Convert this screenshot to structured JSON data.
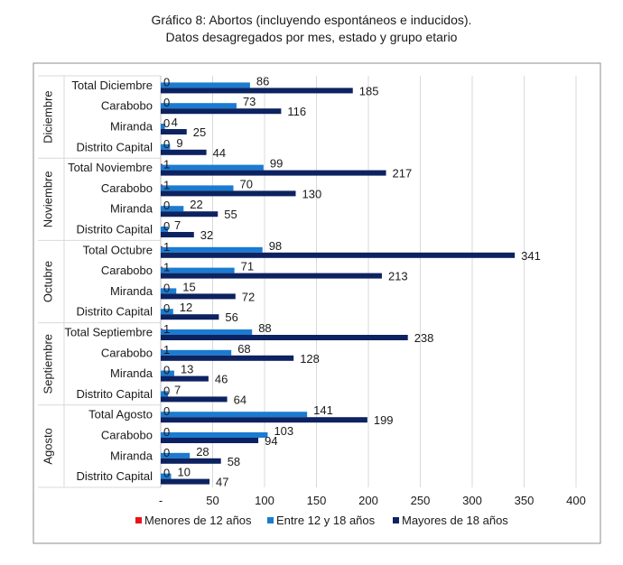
{
  "page": {
    "title_line1": "Gráfico 8: Abortos (incluyendo espontáneos e inducidos).",
    "title_line2": "Datos desagregados por mes, estado y grupo etario"
  },
  "chart_data": {
    "type": "bar",
    "orientation": "horizontal",
    "title": "Gráfico 8: Abortos (incluyendo espontáneos e inducidos). Datos desagregados por mes, estado y grupo etario",
    "xlim": [
      0,
      400
    ],
    "x_ticks": [
      "-",
      "50",
      "100",
      "150",
      "200",
      "250",
      "300",
      "350",
      "400"
    ],
    "legend_position": "bottom",
    "series": [
      {
        "name": "Menores de 12 años",
        "color": "#e8141b"
      },
      {
        "name": "Entre 12 y 18 años",
        "color": "#1b7bd0"
      },
      {
        "name": "Mayores de 18 años",
        "color": "#0d2260"
      }
    ],
    "groups": [
      {
        "name": "Diciembre",
        "rows": [
          {
            "label": "Total Diciembre",
            "values": [
              0,
              86,
              185
            ]
          },
          {
            "label": "Carabobo",
            "values": [
              0,
              73,
              116
            ]
          },
          {
            "label": "Miranda",
            "values": [
              0,
              4,
              25
            ]
          },
          {
            "label": "Distrito Capital",
            "values": [
              0,
              9,
              44
            ]
          }
        ]
      },
      {
        "name": "Noviembre",
        "rows": [
          {
            "label": "Total Noviembre",
            "values": [
              1,
              99,
              217
            ]
          },
          {
            "label": "Carabobo",
            "values": [
              1,
              70,
              130
            ]
          },
          {
            "label": "Miranda",
            "values": [
              0,
              22,
              55
            ]
          },
          {
            "label": "Distrito Capital",
            "values": [
              0,
              7,
              32
            ]
          }
        ]
      },
      {
        "name": "Octubre",
        "rows": [
          {
            "label": "Total Octubre",
            "values": [
              1,
              98,
              341
            ]
          },
          {
            "label": "Carabobo",
            "values": [
              1,
              71,
              213
            ]
          },
          {
            "label": "Miranda",
            "values": [
              0,
              15,
              72
            ]
          },
          {
            "label": "Distrito Capital",
            "values": [
              0,
              12,
              56
            ]
          }
        ]
      },
      {
        "name": "Septiembre",
        "rows": [
          {
            "label": "Total Septiembre",
            "values": [
              1,
              88,
              238
            ]
          },
          {
            "label": "Carabobo",
            "values": [
              1,
              68,
              128
            ]
          },
          {
            "label": "Miranda",
            "values": [
              0,
              13,
              46
            ]
          },
          {
            "label": "Distrito Capital",
            "values": [
              0,
              7,
              64
            ]
          }
        ]
      },
      {
        "name": "Agosto",
        "rows": [
          {
            "label": "Total Agosto",
            "values": [
              0,
              141,
              199
            ]
          },
          {
            "label": "Carabobo",
            "values": [
              0,
              103,
              94
            ]
          },
          {
            "label": "Miranda",
            "values": [
              0,
              28,
              58
            ]
          },
          {
            "label": "Distrito Capital",
            "values": [
              0,
              10,
              47
            ]
          }
        ]
      }
    ]
  }
}
